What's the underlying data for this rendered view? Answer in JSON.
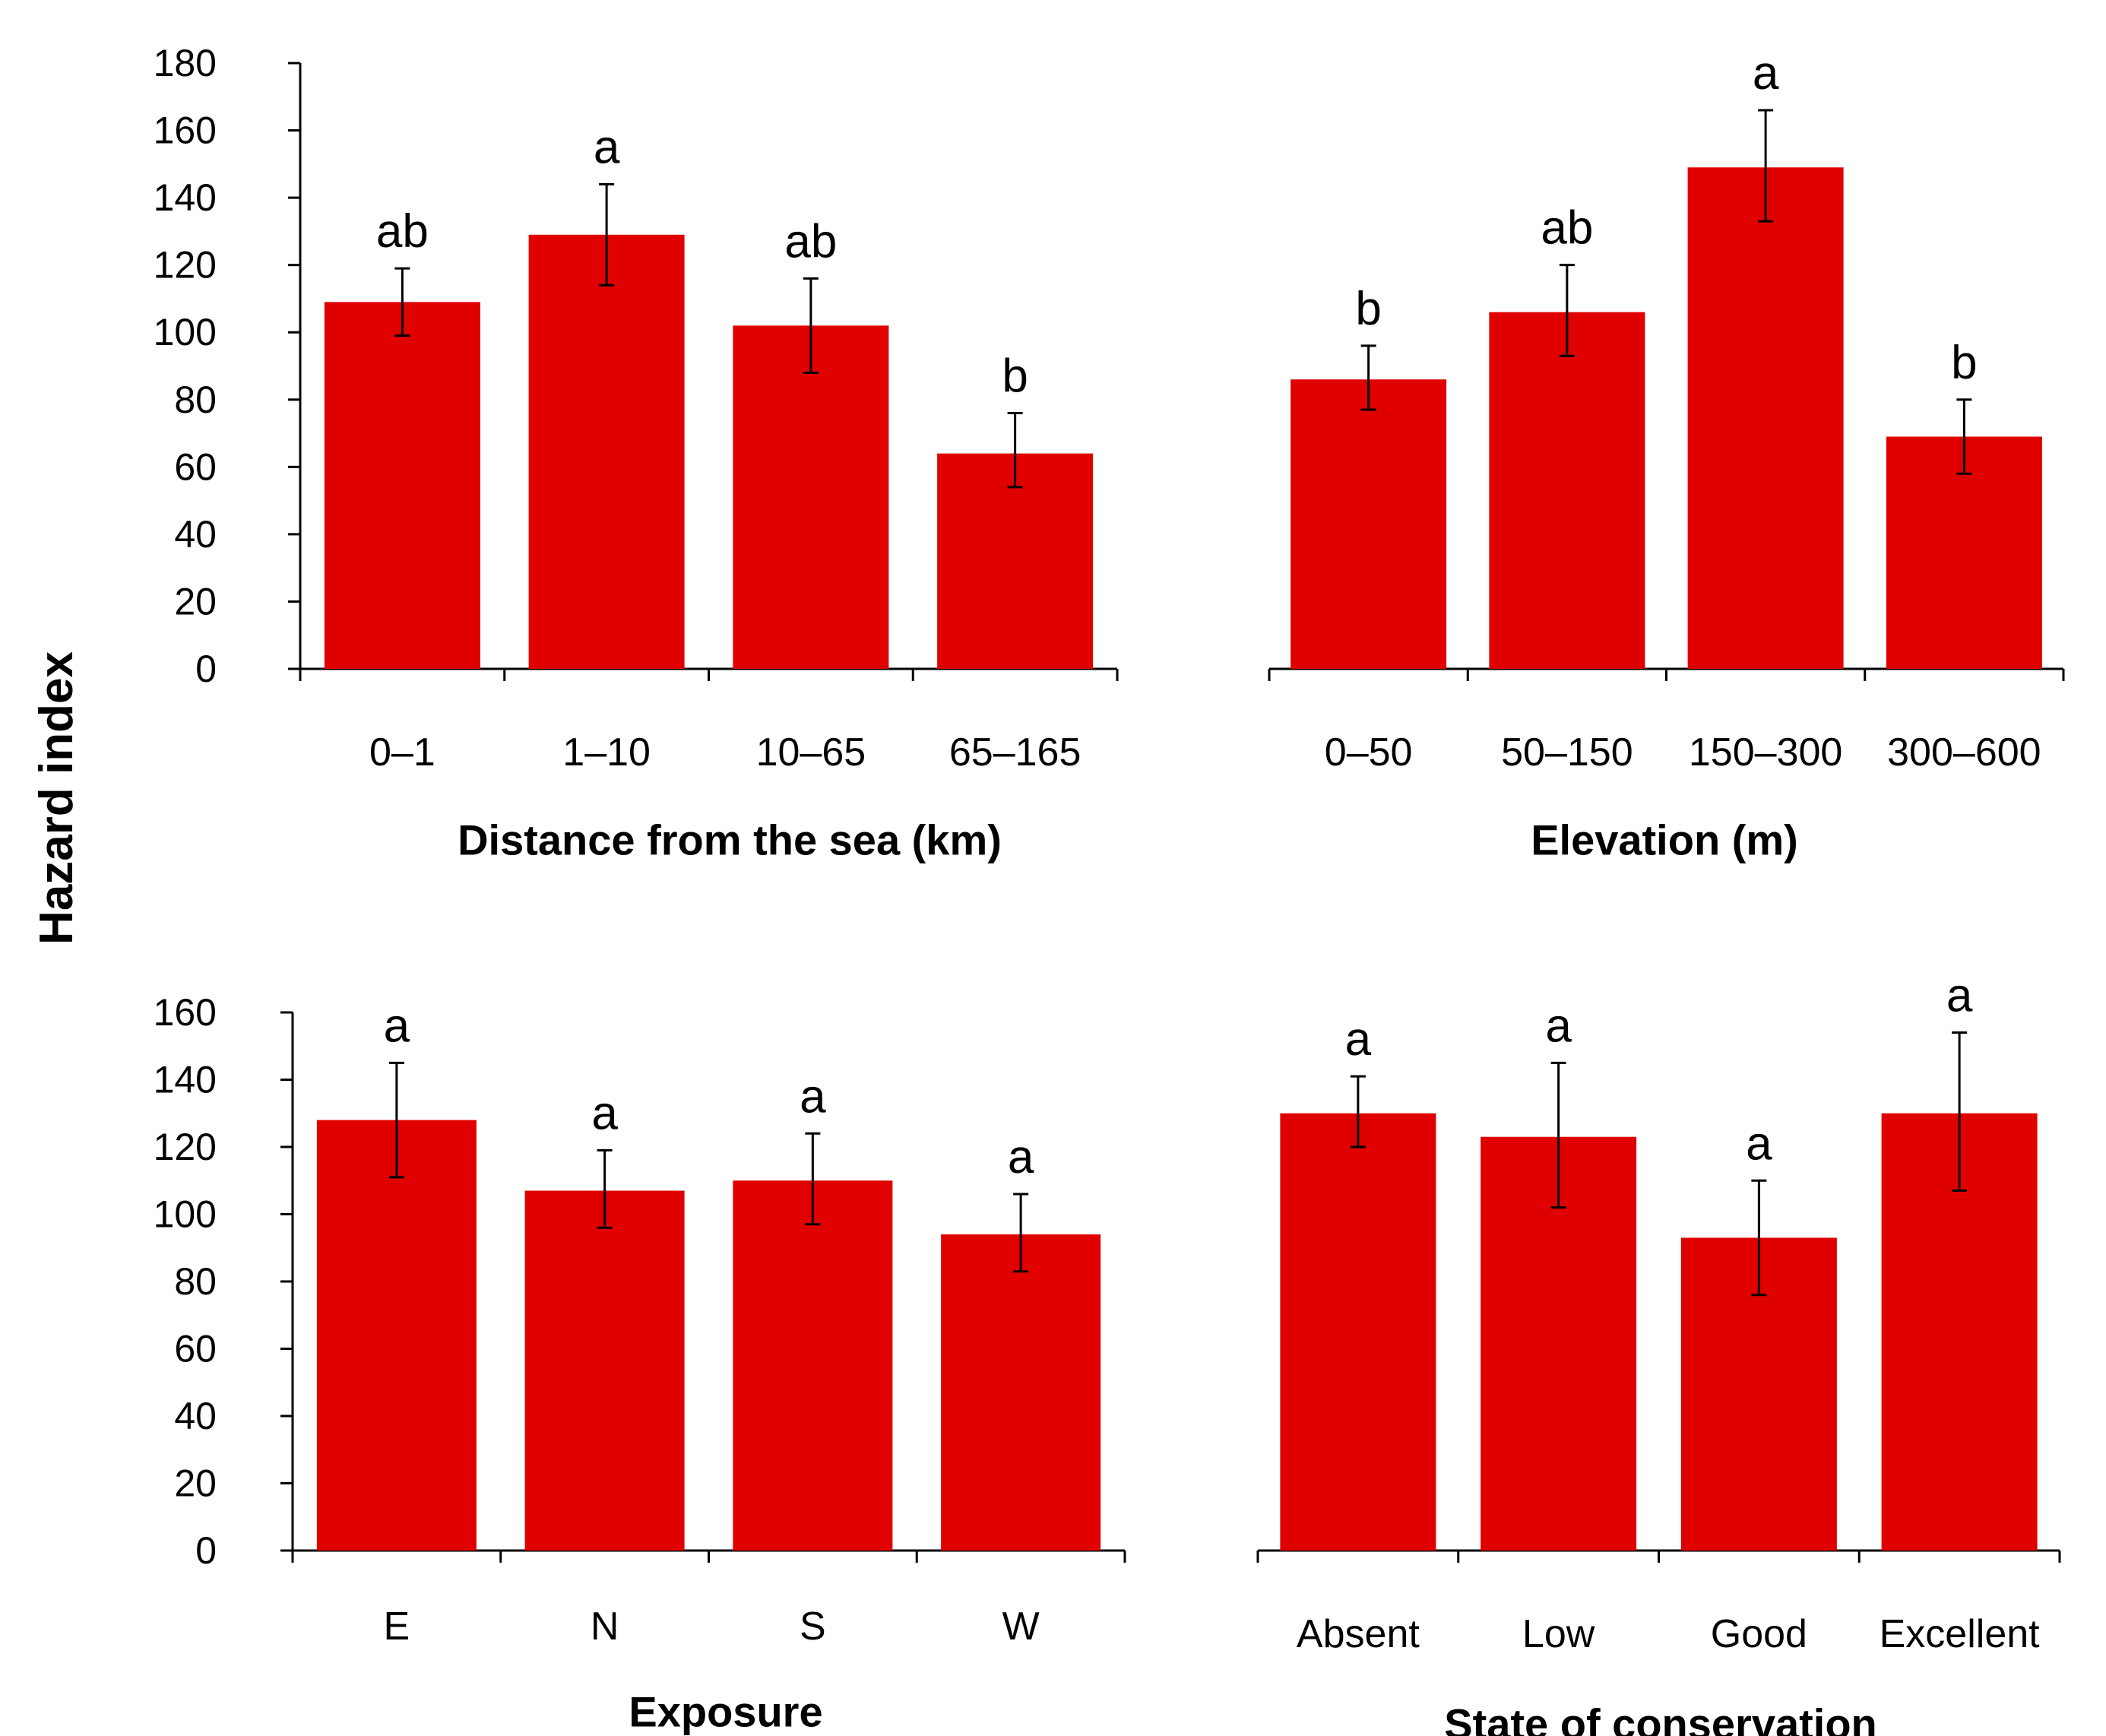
{
  "y_axis_title": "Hazard index",
  "colors": {
    "bar": "#e00000",
    "axis": "#000000",
    "error_bar": "#000000"
  },
  "chart_data": [
    {
      "type": "bar",
      "title": "",
      "xlabel": "Distance from the sea (km)",
      "ylabel": "Hazard index",
      "categories": [
        "0–1",
        "1–10",
        "10–65",
        "65–165"
      ],
      "values": [
        109,
        129,
        102,
        64
      ],
      "error_low": [
        99,
        114,
        88,
        54
      ],
      "error_high": [
        119,
        144,
        116,
        76
      ],
      "significance": [
        "ab",
        "a",
        "ab",
        "b"
      ],
      "ylim": [
        0,
        180
      ],
      "yticks": [
        0,
        20,
        40,
        60,
        80,
        100,
        120,
        140,
        160,
        180
      ],
      "show_y_axis": true
    },
    {
      "type": "bar",
      "title": "",
      "xlabel": "Elevation (m)",
      "ylabel": "",
      "categories": [
        "0–50",
        "50–150",
        "150–300",
        "300–600"
      ],
      "values": [
        86,
        106,
        149,
        69
      ],
      "error_low": [
        77,
        93,
        133,
        58
      ],
      "error_high": [
        96,
        120,
        166,
        80
      ],
      "significance": [
        "b",
        "ab",
        "a",
        "b"
      ],
      "ylim": [
        0,
        180
      ],
      "yticks": [],
      "show_y_axis": false
    },
    {
      "type": "bar",
      "title": "",
      "xlabel": "Exposure",
      "ylabel": "Hazard index",
      "categories": [
        "E",
        "N",
        "S",
        "W"
      ],
      "values": [
        128,
        107,
        110,
        94
      ],
      "error_low": [
        111,
        96,
        97,
        83
      ],
      "error_high": [
        145,
        119,
        124,
        106
      ],
      "significance": [
        "a",
        "a",
        "a",
        "a"
      ],
      "ylim": [
        0,
        160
      ],
      "yticks": [
        0,
        20,
        40,
        60,
        80,
        100,
        120,
        140,
        160
      ],
      "show_y_axis": true
    },
    {
      "type": "bar",
      "title": "",
      "xlabel": "State of conservation",
      "ylabel": "",
      "categories": [
        "Absent",
        "Low",
        "Good",
        "Excellent"
      ],
      "values": [
        130,
        123,
        93,
        130
      ],
      "error_low": [
        120,
        102,
        76,
        107
      ],
      "error_high": [
        141,
        145,
        110,
        154
      ],
      "significance": [
        "a",
        "a",
        "a",
        "a"
      ],
      "ylim": [
        0,
        160
      ],
      "yticks": [],
      "show_y_axis": false
    }
  ]
}
